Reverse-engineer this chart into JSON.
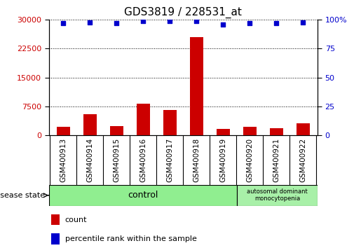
{
  "title": "GDS3819 / 228531_at",
  "samples": [
    "GSM400913",
    "GSM400914",
    "GSM400915",
    "GSM400916",
    "GSM400917",
    "GSM400918",
    "GSM400919",
    "GSM400920",
    "GSM400921",
    "GSM400922"
  ],
  "counts": [
    2200,
    5500,
    2400,
    8200,
    6500,
    25500,
    1600,
    2200,
    1800,
    3000
  ],
  "percentiles": [
    97,
    98,
    97,
    99,
    99,
    99,
    96,
    97,
    97,
    98
  ],
  "bar_color": "#cc0000",
  "dot_color": "#0000cc",
  "ylim_left": [
    0,
    30000
  ],
  "ylim_right": [
    0,
    100
  ],
  "yticks_left": [
    0,
    7500,
    15000,
    22500,
    30000
  ],
  "yticks_right": [
    0,
    25,
    50,
    75,
    100
  ],
  "grid_color": "#000000",
  "control_color": "#90ee90",
  "disease_color": "#a8f0a8",
  "disease_state_label": "disease state",
  "control_label": "control",
  "disease_label": "autosomal dominant\nmonocytopenia",
  "legend_count": "count",
  "legend_percentile": "percentile rank within the sample",
  "control_samples": 7,
  "disease_samples": 3,
  "bar_width": 0.5,
  "xlabel_rotation": 90,
  "label_box_color": "#d0d0d0",
  "fig_width": 5.15,
  "fig_height": 3.54,
  "dpi": 100
}
